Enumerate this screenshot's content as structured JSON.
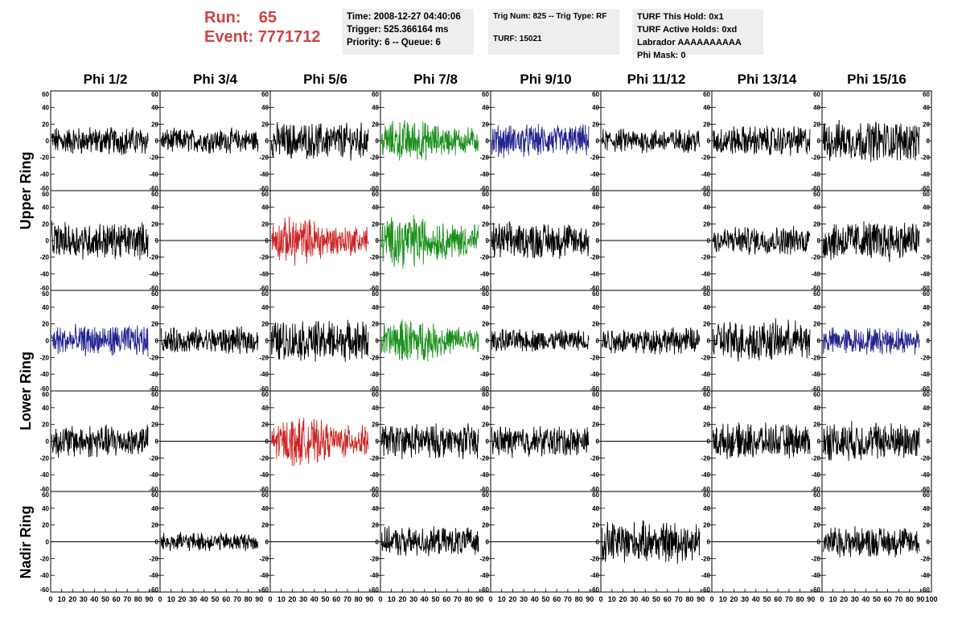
{
  "header": {
    "run_label": "Run:",
    "run_value": "65",
    "event_label": "Event:",
    "event_value": "7771712"
  },
  "info": {
    "time": "Time: 2008-12-27 04:40:06",
    "trigger": "Trigger: 525.366164 ms",
    "priority": "Priority: 6 -- Queue: 6",
    "trig_num": "Trig Num: 825 -- Trig Type: RF",
    "turf": "TURF: 15021",
    "turf_hold": "TURF This Hold: 0x1",
    "turf_active": "TURF Active Holds: 0xd",
    "labrador": "Labrador AAAAAAAAAA",
    "phi_mask": "Phi Mask: 0"
  },
  "chart_data": {
    "type": "line",
    "columns": [
      "Phi 1/2",
      "Phi 3/4",
      "Phi 5/6",
      "Phi 7/8",
      "Phi 9/10",
      "Phi 11/12",
      "Phi 13/14",
      "Phi 15/16"
    ],
    "rows": [
      "Upper Ring",
      "",
      "Lower Ring",
      "",
      "Nadir Ring"
    ],
    "x_range": [
      0,
      100
    ],
    "y_range": [
      -60,
      60
    ],
    "x_ticks": [
      "0",
      "10",
      "20",
      "30",
      "40",
      "50",
      "60",
      "70",
      "80",
      "90",
      "100"
    ],
    "y_ticks": [
      "60",
      "40",
      "20",
      "0",
      "-20",
      "-40",
      "-60"
    ],
    "colors": {
      "black": "#000000",
      "green": "#1a8f1a",
      "blue": "#22228f",
      "red": "#cc2222"
    },
    "panels": [
      [
        "black:14",
        "black:12",
        "black:18",
        "green:20",
        "blue:16",
        "black:12",
        "black:15",
        "black:20"
      ],
      [
        "black:18",
        "flat",
        "red:22",
        "green:25",
        "black:18",
        "flat",
        "black:14",
        "black:20"
      ],
      [
        "blue:15",
        "black:13",
        "black:20",
        "green:20",
        "black:11",
        "black:13",
        "black:20",
        "blue:13"
      ],
      [
        "black:16",
        "flat",
        "red:22",
        "black:17",
        "black:15",
        "flat",
        "black:17",
        "black:19"
      ],
      [
        "flat",
        "black:9",
        "flat",
        "black:14",
        "flat",
        "black:20",
        "flat",
        "black:15"
      ]
    ]
  }
}
